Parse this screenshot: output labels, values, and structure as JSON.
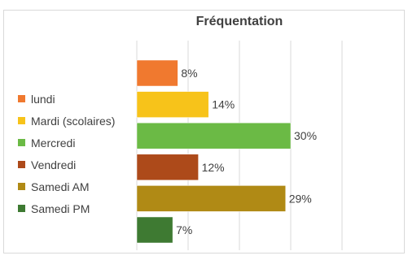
{
  "chart_data": {
    "type": "bar",
    "orientation": "horizontal",
    "title": "Fréquentation",
    "categories": [
      "lundi",
      "Mardi (scolaires)",
      "Mercredi",
      "Vendredi",
      "Samedi AM",
      "Samedi PM"
    ],
    "values": [
      8,
      14,
      30,
      12,
      29,
      7
    ],
    "value_labels": [
      "8%",
      "14%",
      "30%",
      "12%",
      "29%",
      "7%"
    ],
    "colors": [
      "#f0792f",
      "#f7c31a",
      "#6bba45",
      "#ad4a1a",
      "#b08a15",
      "#3e7a32"
    ],
    "xlim": [
      0,
      40
    ],
    "xlabel": "",
    "ylabel": "",
    "grid": true,
    "legend_position": "left"
  }
}
